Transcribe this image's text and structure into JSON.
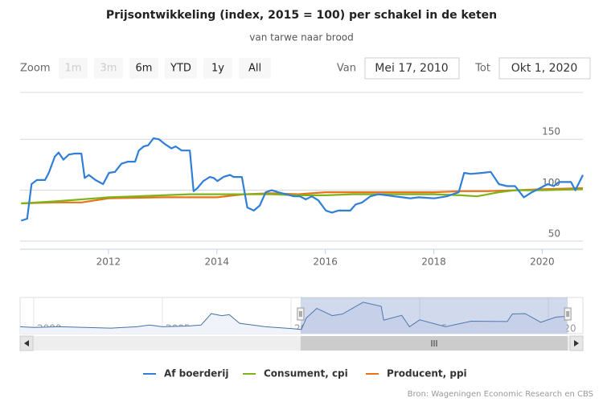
{
  "chart_data": {
    "type": "line",
    "title": "Prijsontwikkeling (index, 2015 = 100) per schakel in de keten",
    "subtitle": "van tarwe naar brood",
    "range_selector": {
      "label": "Zoom",
      "buttons": [
        {
          "text": "1m",
          "enabled": false
        },
        {
          "text": "3m",
          "enabled": false
        },
        {
          "text": "6m",
          "enabled": true
        },
        {
          "text": "YTD",
          "enabled": true
        },
        {
          "text": "1y",
          "enabled": true
        },
        {
          "text": "All",
          "enabled": true
        }
      ]
    },
    "inputs": {
      "from_label": "Van",
      "from": "Mei 17, 2010",
      "to_label": "Tot",
      "to": "Okt 1, 2020"
    },
    "xlim": [
      2010.37,
      2020.75
    ],
    "xticks": [
      2012,
      2014,
      2016,
      2018,
      2020
    ],
    "ylim": [
      42,
      196
    ],
    "yticks": [
      50,
      100,
      150
    ],
    "grid": true,
    "series": [
      {
        "name": "Af boerderij",
        "color": "#2f7ed8",
        "x": [
          2010.39,
          2010.5,
          2010.58,
          2010.68,
          2010.83,
          2010.9,
          2011.01,
          2011.08,
          2011.17,
          2011.27,
          2011.38,
          2011.5,
          2011.56,
          2011.64,
          2011.76,
          2011.9,
          2012.01,
          2012.12,
          2012.24,
          2012.36,
          2012.49,
          2012.56,
          2012.65,
          2012.73,
          2012.83,
          2012.93,
          2013.05,
          2013.16,
          2013.24,
          2013.35,
          2013.5,
          2013.57,
          2013.64,
          2013.75,
          2013.87,
          2013.94,
          2014.01,
          2014.12,
          2014.24,
          2014.31,
          2014.46,
          2014.56,
          2014.68,
          2014.79,
          2014.9,
          2015.01,
          2015.13,
          2015.27,
          2015.42,
          2015.53,
          2015.64,
          2015.75,
          2015.87,
          2016.01,
          2016.12,
          2016.24,
          2016.46,
          2016.56,
          2016.68,
          2016.83,
          2016.98,
          2017.13,
          2017.27,
          2017.42,
          2017.57,
          2017.72,
          2018.01,
          2018.24,
          2018.46,
          2018.56,
          2018.68,
          2018.9,
          2019.05,
          2019.2,
          2019.35,
          2019.5,
          2019.66,
          2019.81,
          2019.96,
          2020.1,
          2020.21,
          2020.31,
          2020.53,
          2020.61,
          2020.75
        ],
        "values": [
          70,
          72,
          106,
          110,
          110,
          117,
          133,
          137,
          130,
          135,
          136,
          136,
          112,
          115,
          110,
          106,
          117,
          118,
          126,
          128,
          128,
          139,
          143,
          144,
          151,
          150,
          145,
          141,
          143,
          139,
          139,
          99,
          102,
          109,
          113,
          112,
          109,
          113,
          115,
          113,
          113,
          83,
          80,
          85,
          98,
          100,
          98,
          96,
          94,
          94,
          91,
          94,
          90,
          80,
          78,
          80,
          80,
          86,
          88,
          94,
          96,
          95,
          94,
          93,
          92,
          93,
          92,
          94,
          98,
          117,
          116,
          117,
          118,
          106,
          104,
          104,
          93,
          98,
          102,
          106,
          104,
          108,
          108,
          100,
          115
        ]
      },
      {
        "name": "Consument, cpi",
        "color": "#7cb518",
        "x": [
          2010.39,
          2011,
          2011.5,
          2012,
          2012.5,
          2013,
          2013.5,
          2014,
          2014.5,
          2015,
          2015.5,
          2016,
          2016.5,
          2017,
          2017.5,
          2018,
          2018.5,
          2018.8,
          2019.2,
          2019.5,
          2020,
          2020.75
        ],
        "values": [
          87,
          89,
          91,
          93,
          94,
          95,
          96,
          96,
          96,
          96,
          95,
          95,
          96,
          96,
          96,
          96,
          95,
          94,
          98,
          100,
          100,
          101
        ]
      },
      {
        "name": "Producent, ppi",
        "color": "#e8731a",
        "x": [
          2010.39,
          2011,
          2011.5,
          2012,
          2013,
          2014,
          2014.5,
          2015,
          2015.5,
          2016,
          2016.5,
          2017,
          2018,
          2018.5,
          2019,
          2019.5,
          2020,
          2020.75
        ],
        "values": [
          87,
          88,
          88,
          92,
          93,
          93,
          96,
          97,
          96,
          98,
          98,
          98,
          98,
          99,
          99,
          100,
          101,
          102
        ]
      }
    ],
    "navigator": {
      "xlim": [
        1999.47,
        2021.34
      ],
      "xticks": [
        2000,
        2005,
        2010,
        2015,
        2020
      ],
      "ylim": [
        60,
        160
      ],
      "color": "#4572a7",
      "x": [
        1999.47,
        2000,
        2001,
        2002,
        2003,
        2004,
        2004.5,
        2005,
        2006,
        2006.5,
        2006.9,
        2007.3,
        2007.6,
        2008,
        2008.5,
        2009,
        2010,
        2010.4,
        2010.6,
        2011,
        2011.6,
        2012,
        2012.8,
        2013.5,
        2013.6,
        2014.3,
        2014.6,
        2015,
        2016,
        2017,
        2018.4,
        2018.6,
        2019.1,
        2019.7,
        2020.3,
        2020.7
      ],
      "values": [
        80,
        78,
        80,
        78,
        76,
        80,
        85,
        80,
        82,
        85,
        118,
        112,
        115,
        90,
        85,
        80,
        75,
        72,
        106,
        133,
        112,
        117,
        151,
        139,
        99,
        113,
        80,
        100,
        80,
        96,
        95,
        117,
        118,
        93,
        108,
        110
      ]
    },
    "credits": "Bron: Wageningen Economic Research en CBS"
  }
}
